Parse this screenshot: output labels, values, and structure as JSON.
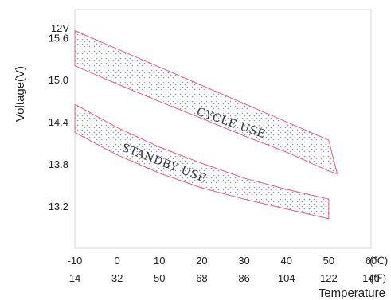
{
  "chart_data": {
    "type": "area",
    "title": "",
    "ylabel": "Voltage(V)",
    "ylabel_unit": "12V",
    "xlabel": "Temperature",
    "y_ticks": [
      "15.6",
      "15.0",
      "14.4",
      "13.8",
      "13.2"
    ],
    "ylim": [
      12.6,
      16.0
    ],
    "x_ticks_c": [
      "-10",
      "0",
      "10",
      "20",
      "30",
      "40",
      "50",
      "60"
    ],
    "x_ticks_f": [
      "14",
      "32",
      "50",
      "68",
      "86",
      "104",
      "122",
      "140"
    ],
    "x_unit_c": "(℃)",
    "x_unit_f": "(℉)",
    "xlim": [
      -10,
      60
    ],
    "grid": false,
    "series": [
      {
        "name": "CYCLE USE",
        "upper": [
          [
            -10,
            15.7
          ],
          [
            50,
            14.14
          ]
        ],
        "lower": [
          [
            -10,
            15.2
          ],
          [
            0,
            14.94
          ],
          [
            10,
            14.69
          ],
          [
            20,
            14.45
          ],
          [
            30,
            14.2
          ],
          [
            40,
            13.97
          ],
          [
            50,
            13.7
          ],
          [
            52,
            13.66
          ]
        ],
        "color": "#e06080"
      },
      {
        "name": "STANDBY USE",
        "upper": [
          [
            -10,
            14.65
          ],
          [
            0,
            14.32
          ],
          [
            10,
            14.04
          ],
          [
            20,
            13.81
          ],
          [
            30,
            13.6
          ],
          [
            40,
            13.44
          ],
          [
            50,
            13.3
          ]
        ],
        "lower": [
          [
            -10,
            14.25
          ],
          [
            0,
            13.93
          ],
          [
            10,
            13.67
          ],
          [
            20,
            13.46
          ],
          [
            30,
            13.3
          ],
          [
            40,
            13.16
          ],
          [
            50,
            13.02
          ]
        ],
        "color": "#e06080"
      }
    ]
  }
}
